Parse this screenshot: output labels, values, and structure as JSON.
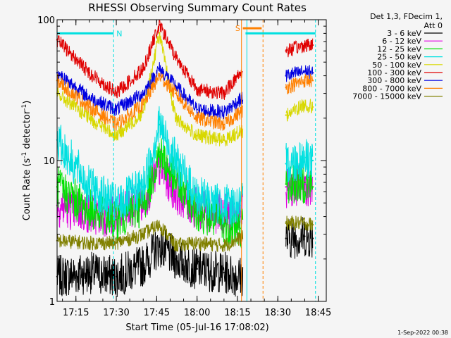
{
  "chart_data": {
    "type": "line",
    "title": "RHESSI Observing Summary Count Rates",
    "xlabel": "Start Time (05-Jul-16 17:08:02)",
    "ylabel_main": "Count Rate (s",
    "ylabel_sup1": "-1",
    "ylabel_mid": " detector",
    "ylabel_sup2": "-1",
    "ylabel_end": ")",
    "ylim": [
      1,
      100
    ],
    "yscale": "log",
    "xlim_minutes": [
      1028,
      1128
    ],
    "x_ticks": [
      {
        "label": "17:15",
        "minute": 1035
      },
      {
        "label": "17:30",
        "minute": 1050
      },
      {
        "label": "17:45",
        "minute": 1065
      },
      {
        "label": "18:00",
        "minute": 1080
      },
      {
        "label": "18:15",
        "minute": 1095
      },
      {
        "label": "18:30",
        "minute": 1110
      },
      {
        "label": "18:45",
        "minute": 1125
      }
    ],
    "y_ticks": [
      {
        "label": "1",
        "value": 1
      },
      {
        "label": "10",
        "value": 10
      },
      {
        "label": "100",
        "value": 100
      }
    ],
    "legend_header": [
      "Det 1,3, FDecim 1,",
      "Att 0"
    ],
    "legend_position": "right",
    "data_gap_minutes": [
      1097,
      1113
    ],
    "series": [
      {
        "name": "3 - 6 keV",
        "color": "#000000",
        "x": [
          1028,
          1040,
          1050,
          1060,
          1066,
          1072,
          1080,
          1090,
          1096,
          1113,
          1120,
          1123
        ],
        "y": [
          1.5,
          1.6,
          1.5,
          1.8,
          2.5,
          2.0,
          1.7,
          1.6,
          1.5,
          2.8,
          2.9,
          2.8
        ]
      },
      {
        "name": "6 - 12 keV",
        "color": "#e000e0",
        "x": [
          1028,
          1040,
          1050,
          1060,
          1066,
          1072,
          1080,
          1090,
          1096,
          1113,
          1120,
          1123
        ],
        "y": [
          4.8,
          4.2,
          4.0,
          5.0,
          9.0,
          6.0,
          4.5,
          4.2,
          4.0,
          6.5,
          6.8,
          6.5
        ]
      },
      {
        "name": "12 - 25 keV",
        "color": "#00e000",
        "x": [
          1028,
          1040,
          1050,
          1060,
          1066,
          1072,
          1080,
          1090,
          1096,
          1113,
          1120,
          1123
        ],
        "y": [
          6.5,
          4.5,
          3.8,
          4.8,
          11.5,
          7.0,
          4.5,
          3.5,
          3.3,
          6.8,
          7.0,
          6.5
        ]
      },
      {
        "name": "25 - 50 keV",
        "color": "#00e0e0",
        "x": [
          1028,
          1040,
          1050,
          1060,
          1066,
          1072,
          1080,
          1090,
          1096,
          1113,
          1120,
          1123
        ],
        "y": [
          14,
          6.5,
          4.8,
          6.5,
          18,
          10,
          5.5,
          4.8,
          4.8,
          9.5,
          10.5,
          10
        ]
      },
      {
        "name": "50 - 100 keV",
        "color": "#d8d800",
        "x": [
          1028,
          1040,
          1050,
          1060,
          1066,
          1072,
          1080,
          1090,
          1096,
          1113,
          1120,
          1123
        ],
        "y": [
          30,
          20,
          15,
          22,
          80,
          20,
          15,
          14,
          16,
          21,
          25,
          24
        ]
      },
      {
        "name": "100 - 300 keV",
        "color": "#e00000",
        "x": [
          1028,
          1040,
          1050,
          1060,
          1066,
          1072,
          1080,
          1090,
          1096,
          1113,
          1120,
          1123
        ],
        "y": [
          72,
          42,
          30,
          45,
          92,
          55,
          32,
          30,
          42,
          60,
          66,
          66
        ]
      },
      {
        "name": "300 - 800 keV",
        "color": "#0000e0",
        "x": [
          1028,
          1040,
          1050,
          1060,
          1066,
          1072,
          1080,
          1090,
          1096,
          1113,
          1120,
          1123
        ],
        "y": [
          42,
          28,
          23,
          30,
          45,
          34,
          23,
          22,
          27,
          40,
          43,
          42
        ]
      },
      {
        "name": "800 - 7000 keV",
        "color": "#ff8000",
        "x": [
          1028,
          1040,
          1050,
          1060,
          1066,
          1072,
          1080,
          1090,
          1096,
          1113,
          1120,
          1123
        ],
        "y": [
          37,
          24,
          18,
          25,
          40,
          30,
          20,
          18,
          22,
          33,
          37,
          37
        ]
      },
      {
        "name": "7000 - 15000 keV",
        "color": "#808000",
        "x": [
          1028,
          1040,
          1050,
          1060,
          1066,
          1072,
          1080,
          1090,
          1096,
          1113,
          1120,
          1123
        ],
        "y": [
          2.7,
          2.6,
          2.6,
          3.0,
          3.5,
          2.5,
          2.6,
          2.5,
          2.8,
          3.6,
          3.6,
          3.5
        ]
      }
    ],
    "annotations": [
      {
        "label": "N",
        "color": "#00e0e0",
        "minute": 1049,
        "bar_from": 1028,
        "bar_to": 1049,
        "bar_value": 80
      },
      {
        "label": "S",
        "color": "#ff8000",
        "minute": 1095.5,
        "bar_from": 1097,
        "bar_to": 1104,
        "bar_value": 87
      },
      {
        "label": "",
        "color": "#00e0e0",
        "minute": 1124,
        "bar_from": 1098,
        "bar_to": 1124,
        "bar_value": 80
      }
    ],
    "vertical_markers": [
      {
        "minute": 1049,
        "color": "#00e0e0",
        "style": "dashed"
      },
      {
        "minute": 1096.5,
        "color": "#ff8000",
        "style": "solid"
      },
      {
        "minute": 1098.5,
        "color": "#00e0e0",
        "style": "solid"
      },
      {
        "minute": 1104.5,
        "color": "#ff8000",
        "style": "dashed"
      },
      {
        "minute": 1124,
        "color": "#00e0e0",
        "style": "dashed"
      }
    ],
    "footer": "1-Sep-2022 00:38",
    "grid": false
  }
}
